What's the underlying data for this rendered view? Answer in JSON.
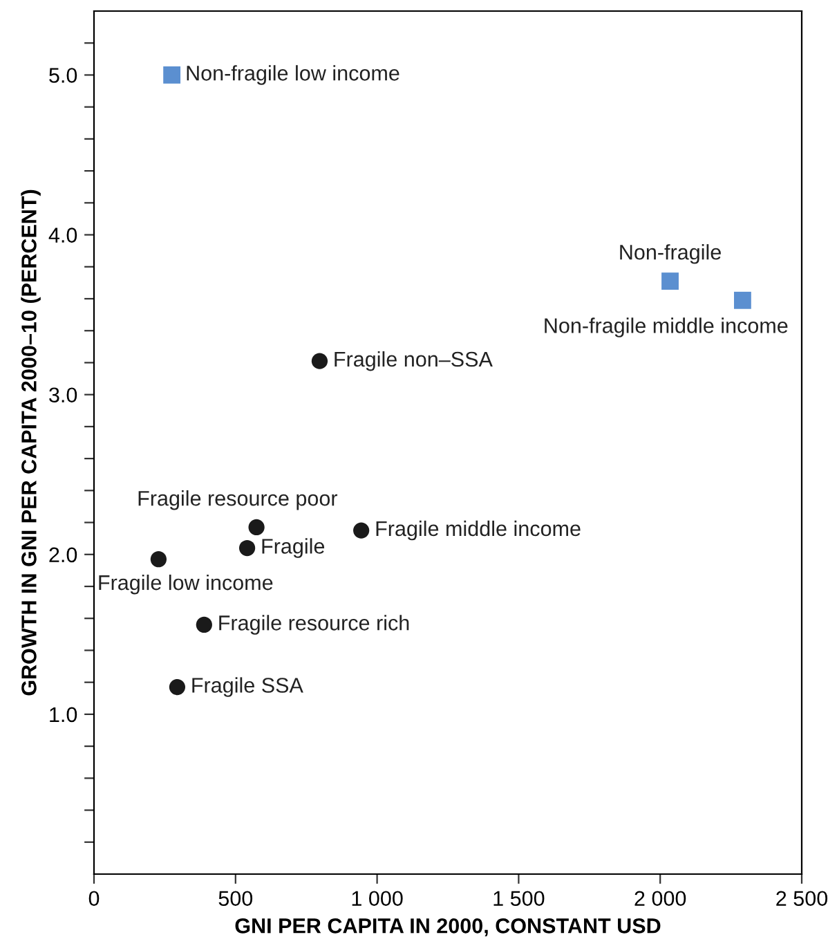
{
  "chart_data": {
    "type": "scatter",
    "xlabel": "GNI PER CAPITA IN 2000, CONSTANT USD",
    "ylabel": "GROWTH IN GNI PER CAPITA 2000–10 (PERCENT)",
    "series": [
      {
        "color": "#5b8fd0",
        "marker": "square",
        "x": [
          275,
          2035,
          2291
        ],
        "values": [
          5.0,
          3.71,
          3.59
        ]
      },
      {
        "color": "#1a1a1a",
        "marker": "circle",
        "x": [
          797,
          574,
          541,
          944,
          228,
          389,
          294
        ],
        "values": [
          3.21,
          2.17,
          2.04,
          2.15,
          1.97,
          1.56,
          1.17
        ]
      }
    ],
    "annotations": [
      {
        "text": "Non-fragile low income",
        "x": 275,
        "y": 5.0
      },
      {
        "text": "Non-fragile",
        "x": 2035,
        "y": 3.71
      },
      {
        "text": "Non-fragile middle income",
        "x": 2291,
        "y": 3.59
      },
      {
        "text": "Fragile non–SSA",
        "x": 797,
        "y": 3.21
      },
      {
        "text": "Fragile resource poor",
        "x": 574,
        "y": 2.17
      },
      {
        "text": "Fragile",
        "x": 541,
        "y": 2.04
      },
      {
        "text": "Fragile middle income",
        "x": 944,
        "y": 2.15
      },
      {
        "text": "Fragile low income",
        "x": 228,
        "y": 1.97
      },
      {
        "text": "Fragile resource rich",
        "x": 389,
        "y": 1.56
      },
      {
        "text": "Fragile SSA",
        "x": 294,
        "y": 1.17
      }
    ],
    "xlim": [
      0,
      2500
    ],
    "xticks": [
      0,
      500,
      {
        "value": 1000,
        "label": "1 000"
      },
      {
        "value": 1500,
        "label": "1 500"
      },
      {
        "value": 2000,
        "label": "2 000"
      },
      {
        "value": 2500,
        "label": "2 500"
      }
    ],
    "ylim": [
      0,
      5.4
    ],
    "yticks": [
      {
        "value": 0.2,
        "label": null
      },
      {
        "value": 0.4,
        "label": null
      },
      {
        "value": 0.6,
        "label": null
      },
      {
        "value": 0.8,
        "label": null
      },
      {
        "value": 1.0,
        "label": "1.0"
      },
      {
        "value": 1.2,
        "label": null
      },
      {
        "value": 1.4,
        "label": null
      },
      {
        "value": 1.6,
        "label": null
      },
      {
        "value": 1.8,
        "label": null
      },
      {
        "value": 2.0,
        "label": "2.0"
      },
      {
        "value": 2.2,
        "label": null
      },
      {
        "value": 2.4,
        "label": null
      },
      {
        "value": 2.6,
        "label": null
      },
      {
        "value": 2.8,
        "label": null
      },
      {
        "value": 3.0,
        "label": "3.0"
      },
      {
        "value": 3.2,
        "label": null
      },
      {
        "value": 3.4,
        "label": null
      },
      {
        "value": 3.6,
        "label": null
      },
      {
        "value": 3.8,
        "label": null
      },
      {
        "value": 4.0,
        "label": "4.0"
      },
      {
        "value": 4.2,
        "label": null
      },
      {
        "value": 4.4,
        "label": null
      },
      {
        "value": 4.6,
        "label": null
      },
      {
        "value": 4.8,
        "label": null
      },
      {
        "value": 5.0,
        "label": "5.0"
      },
      {
        "value": 5.2,
        "label": null
      }
    ],
    "grid": false,
    "legend": false
  }
}
